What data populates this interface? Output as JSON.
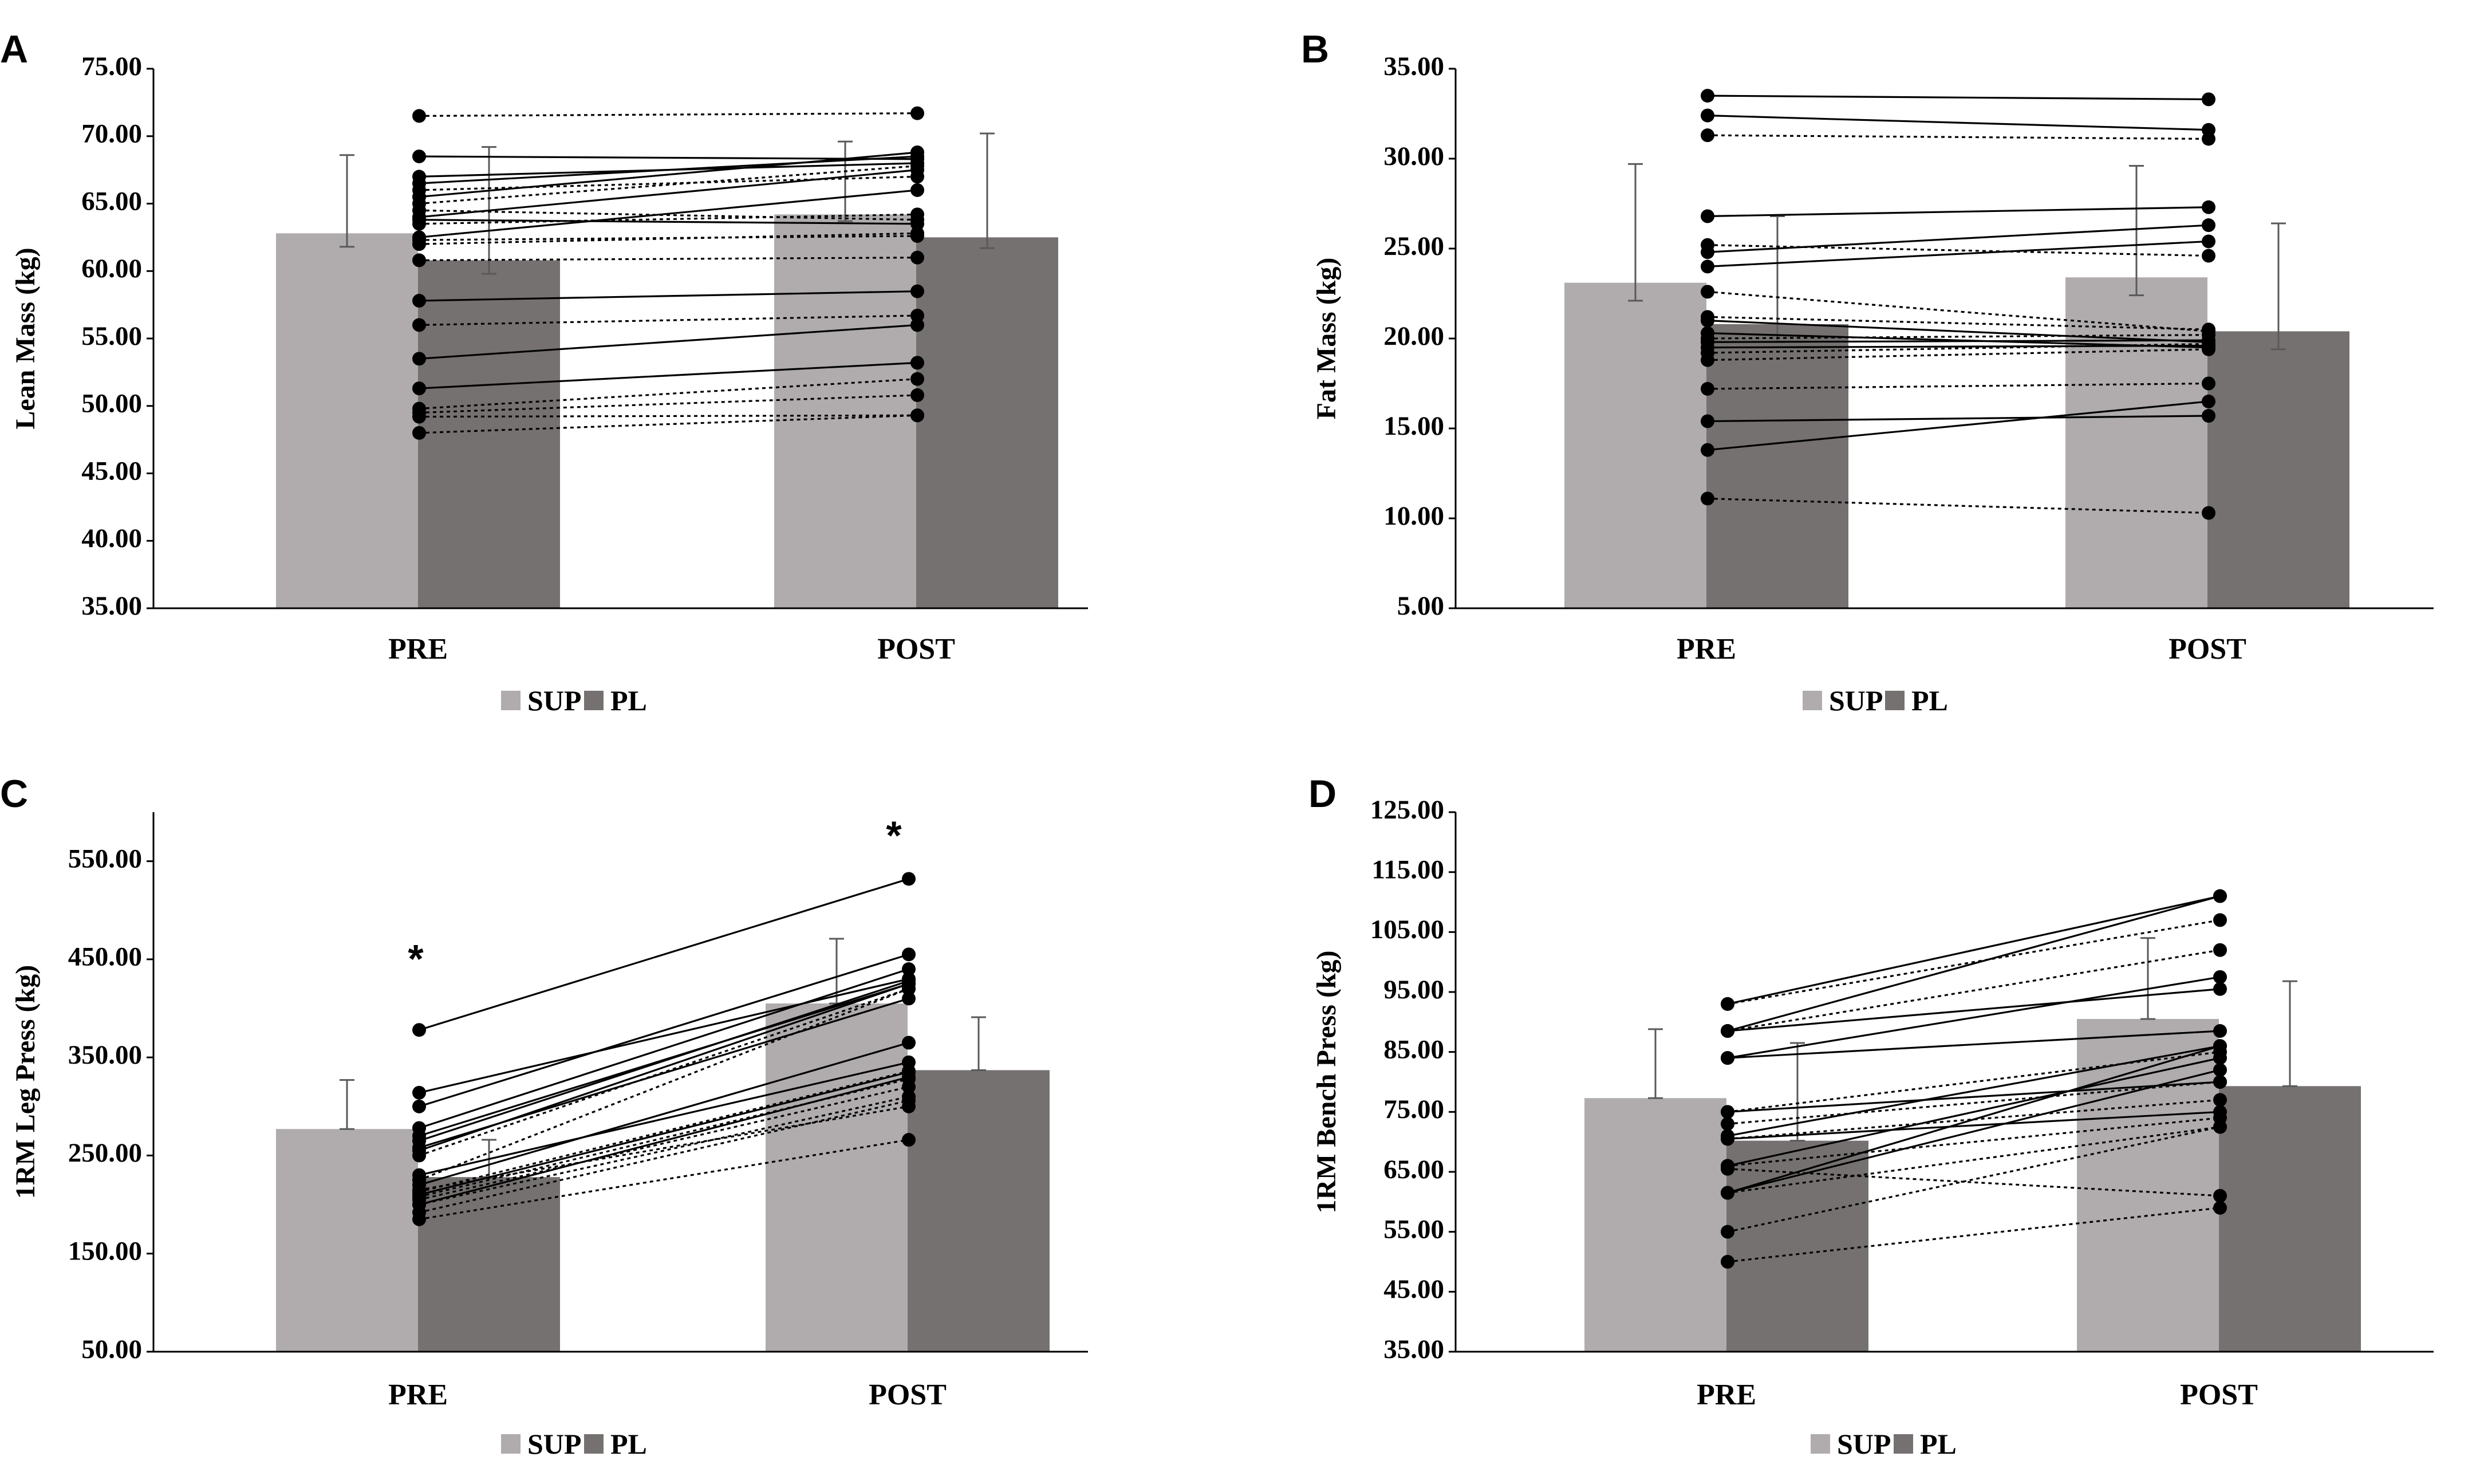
{
  "colors": {
    "sup": "#b0acad",
    "pl": "#767171",
    "axis": "#000000",
    "line": "#000000",
    "err": "#595959"
  },
  "chart_data": [
    {
      "panel": "A",
      "type": "bar",
      "ylabel": "Lean Mass (kg)",
      "ylim": [
        35,
        75
      ],
      "yticks": [
        "35.00",
        "40.00",
        "45.00",
        "50.00",
        "55.00",
        "60.00",
        "65.00",
        "70.00",
        "75.00"
      ],
      "categories": [
        "PRE",
        "POST"
      ],
      "series": [
        {
          "name": "SUP",
          "values": [
            62.8,
            64.2
          ],
          "err_up": [
            5.8,
            5.4
          ],
          "err_down": [
            1.0,
            0.5
          ]
        },
        {
          "name": "PL",
          "values": [
            60.8,
            62.5
          ],
          "err_up": [
            8.4,
            7.7
          ],
          "err_down": [
            1.0,
            0.8
          ]
        }
      ],
      "legend": [
        "SUP",
        "PL"
      ],
      "individual": {
        "solid": [
          [
            68.5,
            68.3
          ],
          [
            67.0,
            68.0
          ],
          [
            66.5,
            68.5
          ],
          [
            65.5,
            68.8
          ],
          [
            64.0,
            67.5
          ],
          [
            63.8,
            63.5
          ],
          [
            62.5,
            66.0
          ],
          [
            57.8,
            58.5
          ],
          [
            53.5,
            56.0
          ],
          [
            51.3,
            53.2
          ]
        ],
        "dotted": [
          [
            71.5,
            71.7
          ],
          [
            66.0,
            67.0
          ],
          [
            65.0,
            67.8
          ],
          [
            64.5,
            63.8
          ],
          [
            63.5,
            64.2
          ],
          [
            62.3,
            62.6
          ],
          [
            62.0,
            62.8
          ],
          [
            60.8,
            61.0
          ],
          [
            56.0,
            56.7
          ],
          [
            49.8,
            52.0
          ],
          [
            49.5,
            50.8
          ],
          [
            49.2,
            49.3
          ],
          [
            48.0,
            49.3
          ]
        ]
      }
    },
    {
      "panel": "B",
      "type": "bar",
      "ylabel": "Fat Mass (kg)",
      "ylim": [
        5,
        35
      ],
      "yticks": [
        "5.00",
        "10.00",
        "15.00",
        "20.00",
        "25.00",
        "30.00",
        "35.00"
      ],
      "categories": [
        "PRE",
        "POST"
      ],
      "series": [
        {
          "name": "SUP",
          "values": [
            23.1,
            23.4
          ],
          "err_up": [
            6.6,
            6.2
          ],
          "err_down": [
            1.0,
            1.0
          ]
        },
        {
          "name": "PL",
          "values": [
            20.8,
            20.4
          ],
          "err_up": [
            6.0,
            6.0
          ],
          "err_down": [
            1.0,
            1.0
          ]
        }
      ],
      "legend": [
        "SUP",
        "PL"
      ],
      "individual": {
        "solid": [
          [
            33.5,
            33.3
          ],
          [
            32.4,
            31.6
          ],
          [
            26.8,
            27.3
          ],
          [
            24.8,
            26.3
          ],
          [
            24.0,
            25.4
          ],
          [
            21.0,
            19.8
          ],
          [
            20.3,
            19.5
          ],
          [
            19.8,
            19.9
          ],
          [
            19.5,
            19.6
          ],
          [
            15.4,
            15.7
          ],
          [
            13.8,
            16.5
          ]
        ],
        "dotted": [
          [
            31.3,
            31.1
          ],
          [
            25.2,
            24.6
          ],
          [
            22.6,
            20.4
          ],
          [
            21.2,
            20.5
          ],
          [
            20.0,
            20.2
          ],
          [
            19.2,
            19.7
          ],
          [
            18.8,
            19.4
          ],
          [
            17.2,
            17.5
          ],
          [
            11.1,
            10.3
          ]
        ]
      }
    },
    {
      "panel": "C",
      "type": "bar",
      "ylabel": "1RM Leg Press (kg)",
      "ylim": [
        50,
        600
      ],
      "yticks": [
        "50.00",
        "150.00",
        "250.00",
        "350.00",
        "450.00",
        "550.00"
      ],
      "categories": [
        "PRE",
        "POST"
      ],
      "series": [
        {
          "name": "SUP",
          "values": [
            277,
            405
          ],
          "err_up": [
            50,
            66
          ],
          "err_down": [
            0,
            0
          ]
        },
        {
          "name": "PL",
          "values": [
            228,
            337
          ],
          "err_up": [
            38,
            54
          ],
          "err_down": [
            0,
            0
          ]
        }
      ],
      "legend": [
        "SUP",
        "PL"
      ],
      "annotations": [
        "*",
        "*"
      ],
      "individual": {
        "solid": [
          [
            378,
            532
          ],
          [
            314,
            430
          ],
          [
            300,
            455
          ],
          [
            278,
            440
          ],
          [
            270,
            425
          ],
          [
            265,
            428
          ],
          [
            258,
            410
          ],
          [
            255,
            425
          ],
          [
            230,
            345
          ],
          [
            220,
            365
          ],
          [
            210,
            335
          ],
          [
            200,
            330
          ]
        ],
        "dotted": [
          [
            250,
            420
          ],
          [
            225,
            420
          ],
          [
            213,
            336
          ],
          [
            208,
            328
          ],
          [
            205,
            320
          ],
          [
            200,
            310
          ],
          [
            192,
            306
          ],
          [
            185,
            266
          ],
          [
            215,
            300
          ]
        ]
      }
    },
    {
      "panel": "D",
      "type": "bar",
      "ylabel": "1RM Bench Press (kg)",
      "ylim": [
        35,
        125
      ],
      "yticks": [
        "35.00",
        "45.00",
        "55.00",
        "65.00",
        "75.00",
        "85.00",
        "95.00",
        "105.00",
        "115.00",
        "125.00"
      ],
      "categories": [
        "PRE",
        "POST"
      ],
      "series": [
        {
          "name": "SUP",
          "values": [
            77.3,
            90.5
          ],
          "err_up": [
            11.5,
            13.5
          ],
          "err_down": [
            0,
            0
          ]
        },
        {
          "name": "PL",
          "values": [
            70.2,
            79.3
          ],
          "err_up": [
            16.3,
            17.5
          ],
          "err_down": [
            0,
            0
          ]
        }
      ],
      "legend": [
        "SUP",
        "PL"
      ],
      "individual": {
        "solid": [
          [
            93,
            111
          ],
          [
            88.5,
            111
          ],
          [
            88.5,
            95.5
          ],
          [
            84,
            97.5
          ],
          [
            84,
            88.5
          ],
          [
            71,
            86
          ],
          [
            70.5,
            75
          ],
          [
            66,
            84
          ],
          [
            61.5,
            86
          ],
          [
            61.5,
            82
          ],
          [
            75,
            80
          ]
        ],
        "dotted": [
          [
            93,
            107
          ],
          [
            88.5,
            102
          ],
          [
            75,
            85
          ],
          [
            73,
            80
          ],
          [
            70.5,
            77
          ],
          [
            66,
            74
          ],
          [
            65.5,
            61
          ],
          [
            61.5,
            72.5
          ],
          [
            55,
            72.5
          ],
          [
            50,
            59
          ]
        ]
      }
    }
  ]
}
